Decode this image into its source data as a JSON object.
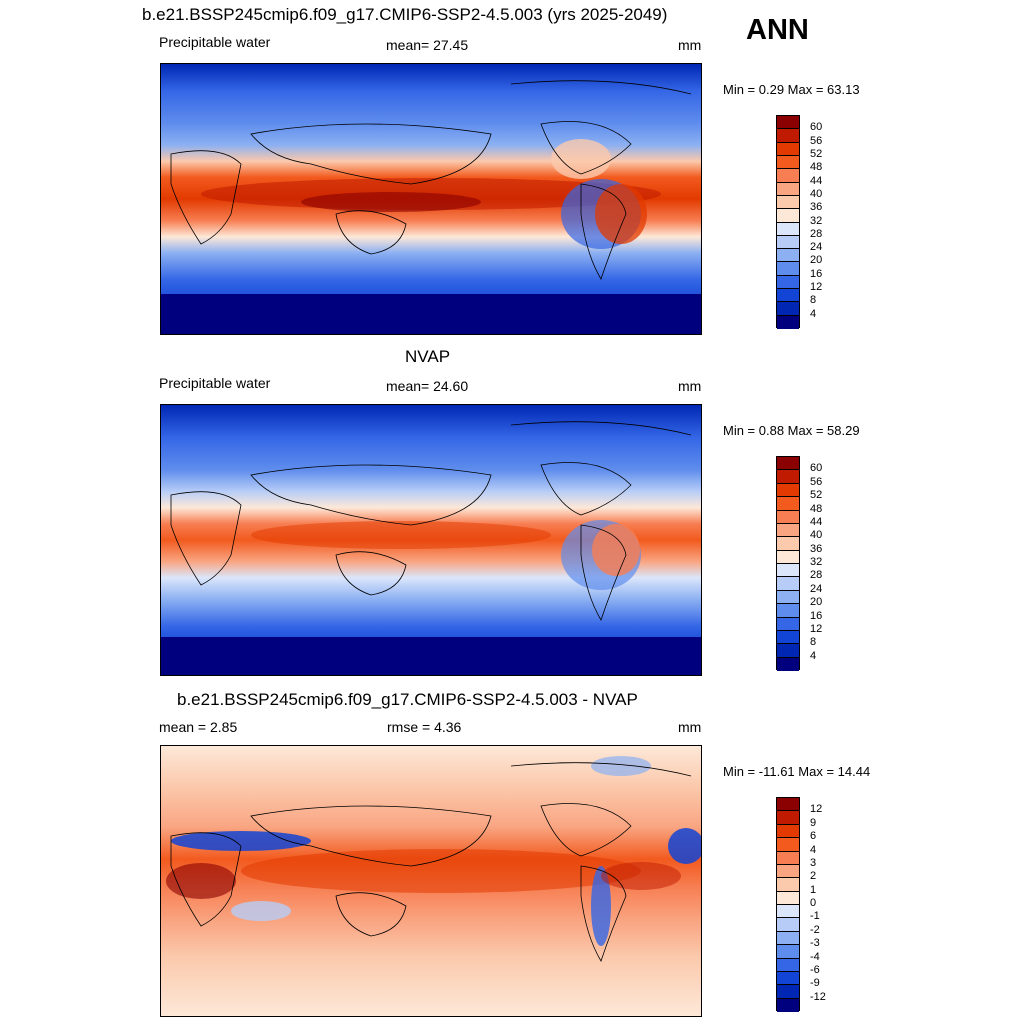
{
  "header": {
    "title": "b.e21.BSSP245cmip6.f09_g17.CMIP6-SSP2-4.5.003 (yrs 2025-2049)",
    "season": "ANN"
  },
  "panels": [
    {
      "id": "model",
      "title": "",
      "left_label": "Precipitable water",
      "center_label": "mean=  27.45",
      "right_label": "mm",
      "minmax": "Min =   0.29 Max =  63.13",
      "levels": [
        "60",
        "56",
        "52",
        "48",
        "44",
        "40",
        "36",
        "32",
        "28",
        "24",
        "20",
        "16",
        "12",
        "8",
        "4"
      ],
      "colors": [
        "#8b0000",
        "#c01a00",
        "#e23a00",
        "#f25a1e",
        "#f77e52",
        "#f9a582",
        "#fbc9ac",
        "#fde8d8",
        "#dbe6fb",
        "#b7cdf7",
        "#8cb0f2",
        "#5f8ded",
        "#3466e6",
        "#1244d5",
        "#0027b4",
        "#00007f"
      ]
    },
    {
      "id": "obs",
      "title": "NVAP",
      "left_label": "Precipitable water",
      "center_label": "mean=  24.60",
      "right_label": "mm",
      "minmax": "Min =   0.88 Max =  58.29",
      "levels": [
        "60",
        "56",
        "52",
        "48",
        "44",
        "40",
        "36",
        "32",
        "28",
        "24",
        "20",
        "16",
        "12",
        "8",
        "4"
      ],
      "colors": [
        "#8b0000",
        "#c01a00",
        "#e23a00",
        "#f25a1e",
        "#f77e52",
        "#f9a582",
        "#fbc9ac",
        "#fde8d8",
        "#dbe6fb",
        "#b7cdf7",
        "#8cb0f2",
        "#5f8ded",
        "#3466e6",
        "#1244d5",
        "#0027b4",
        "#00007f"
      ]
    },
    {
      "id": "diff",
      "title": "b.e21.BSSP245cmip6.f09_g17.CMIP6-SSP2-4.5.003 - NVAP",
      "left_label": "mean =   2.85",
      "center_label": "rmse =   4.36",
      "right_label": "mm",
      "minmax": "Min = -11.61 Max =  14.44",
      "levels": [
        "12",
        "9",
        "6",
        "4",
        "3",
        "2",
        "1",
        "0",
        "-1",
        "-2",
        "-3",
        "-4",
        "-6",
        "-9",
        "-12"
      ],
      "colors": [
        "#8b0000",
        "#c01a00",
        "#e23a00",
        "#f25a1e",
        "#f77e52",
        "#f9a582",
        "#fbc9ac",
        "#fde8d8",
        "#dbe6fb",
        "#b7cdf7",
        "#8cb0f2",
        "#5f8ded",
        "#3466e6",
        "#1244d5",
        "#0027b4",
        "#00007f"
      ]
    }
  ]
}
